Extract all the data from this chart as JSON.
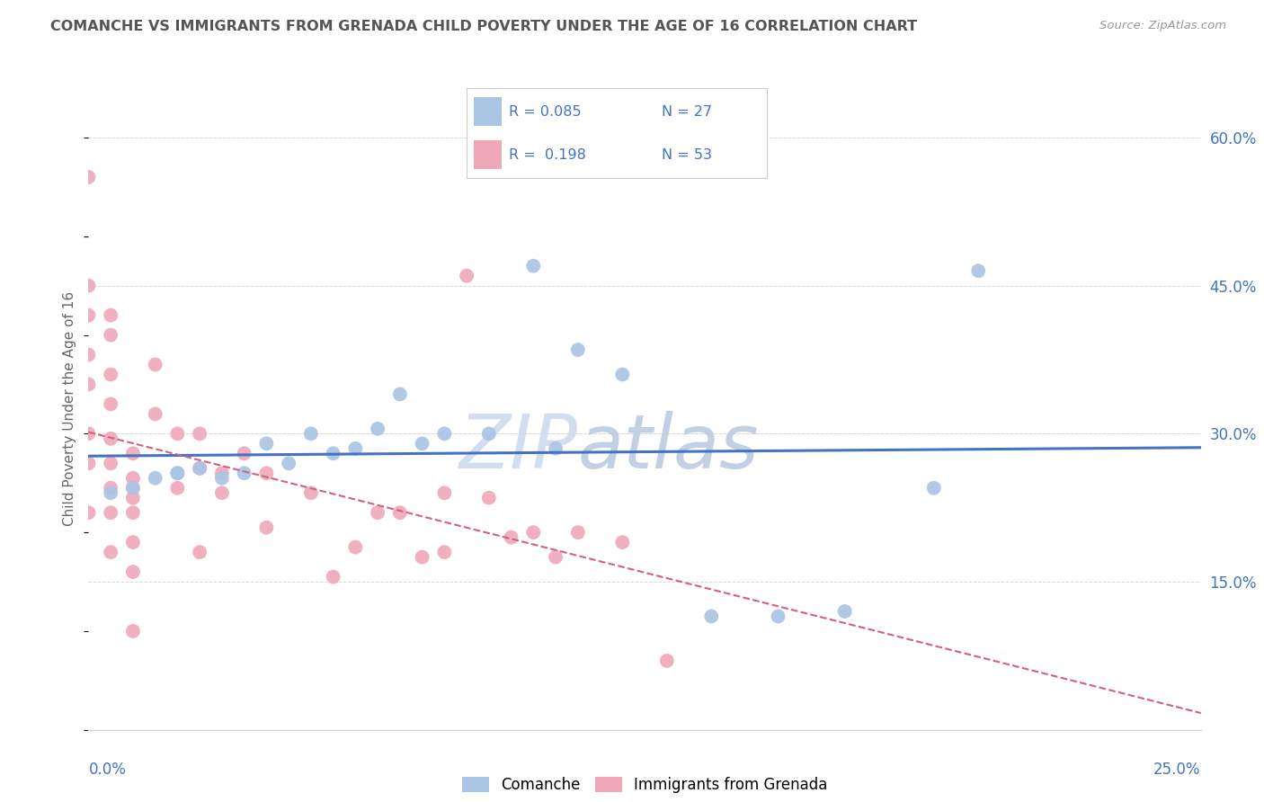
{
  "title": "COMANCHE VS IMMIGRANTS FROM GRENADA CHILD POVERTY UNDER THE AGE OF 16 CORRELATION CHART",
  "source": "Source: ZipAtlas.com",
  "ylabel": "Child Poverty Under the Age of 16",
  "ytick_vals": [
    0.0,
    0.15,
    0.3,
    0.45,
    0.6
  ],
  "ytick_labels": [
    "",
    "15.0%",
    "30.0%",
    "45.0%",
    "60.0%"
  ],
  "xlim": [
    0.0,
    0.25
  ],
  "ylim": [
    0.0,
    0.65
  ],
  "comanche_color": "#aac4e4",
  "grenada_color": "#f0a8b8",
  "trend_comanche_color": "#4472c4",
  "trend_grenada_color": "#d46080",
  "comanche_x": [
    0.005,
    0.01,
    0.015,
    0.02,
    0.02,
    0.025,
    0.03,
    0.035,
    0.04,
    0.045,
    0.05,
    0.055,
    0.06,
    0.065,
    0.07,
    0.075,
    0.08,
    0.09,
    0.1,
    0.105,
    0.11,
    0.12,
    0.14,
    0.155,
    0.17,
    0.19,
    0.2
  ],
  "comanche_y": [
    0.24,
    0.245,
    0.255,
    0.26,
    0.26,
    0.265,
    0.255,
    0.26,
    0.29,
    0.27,
    0.3,
    0.28,
    0.285,
    0.305,
    0.34,
    0.29,
    0.3,
    0.3,
    0.47,
    0.285,
    0.385,
    0.36,
    0.115,
    0.115,
    0.12,
    0.245,
    0.465
  ],
  "grenada_x": [
    0.0,
    0.0,
    0.0,
    0.0,
    0.0,
    0.0,
    0.0,
    0.0,
    0.005,
    0.005,
    0.005,
    0.005,
    0.005,
    0.005,
    0.005,
    0.005,
    0.005,
    0.01,
    0.01,
    0.01,
    0.01,
    0.01,
    0.01,
    0.01,
    0.01,
    0.015,
    0.015,
    0.02,
    0.02,
    0.025,
    0.025,
    0.025,
    0.03,
    0.03,
    0.035,
    0.04,
    0.04,
    0.05,
    0.055,
    0.06,
    0.065,
    0.07,
    0.075,
    0.08,
    0.08,
    0.085,
    0.09,
    0.095,
    0.1,
    0.105,
    0.11,
    0.12,
    0.13
  ],
  "grenada_y": [
    0.56,
    0.45,
    0.42,
    0.38,
    0.35,
    0.3,
    0.27,
    0.22,
    0.42,
    0.4,
    0.36,
    0.33,
    0.295,
    0.27,
    0.245,
    0.22,
    0.18,
    0.28,
    0.255,
    0.245,
    0.235,
    0.22,
    0.19,
    0.16,
    0.1,
    0.37,
    0.32,
    0.3,
    0.245,
    0.3,
    0.265,
    0.18,
    0.26,
    0.24,
    0.28,
    0.26,
    0.205,
    0.24,
    0.155,
    0.185,
    0.22,
    0.22,
    0.175,
    0.24,
    0.18,
    0.46,
    0.235,
    0.195,
    0.2,
    0.175,
    0.2,
    0.19,
    0.07
  ],
  "background_color": "#ffffff",
  "grid_color": "#d8d8d8",
  "title_color": "#555555",
  "axis_label_color": "#4472c4",
  "watermark_zip_color": "#ccd8ee",
  "watermark_atlas_color": "#b8c8e0"
}
